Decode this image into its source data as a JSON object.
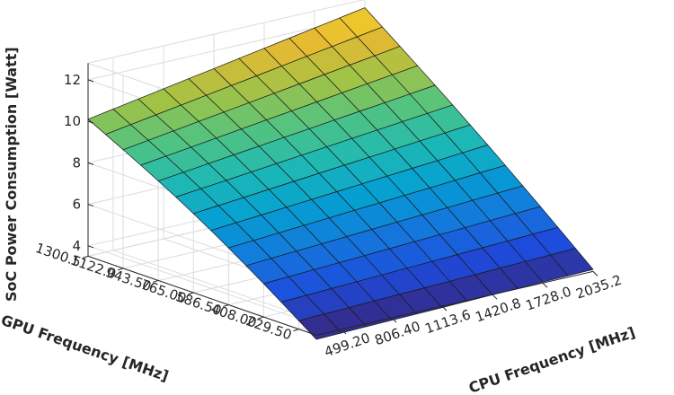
{
  "chart_data": {
    "type": "surface",
    "title": "",
    "xlabel": "CPU Frequency [MHz]",
    "ylabel": "GPU Frequency [MHz]",
    "zlabel": "SoC Power Consumption [Watt]",
    "cpu_freq_ticks": [
      "499.20",
      "806.40",
      "1113.6",
      "1420.8",
      "1728.0",
      "2035.2"
    ],
    "gpu_freq_ticks": [
      "1300.5",
      "1122.0",
      "943.50",
      "765.00",
      "586.50",
      "408.00",
      "229.50"
    ],
    "power_ticks": [
      "4",
      "6",
      "8",
      "10",
      "12"
    ],
    "power_range": [
      3.5,
      12.8
    ],
    "grid": true,
    "colormap": "parula",
    "cpu_freq": [
      345.6,
      499.2,
      652.8,
      806.4,
      960.0,
      1113.6,
      1267.2,
      1420.8,
      1574.4,
      1728.0,
      1881.6,
      2035.2
    ],
    "gpu_freq": [
      140.25,
      229.5,
      318.75,
      408.0,
      497.25,
      586.5,
      675.75,
      765.0,
      854.25,
      943.5,
      1032.75,
      1122.0,
      1211.25,
      1300.5
    ],
    "power_corners": {
      "cpu_min_gpu_min": 3.3,
      "cpu_max_gpu_min": 3.6,
      "cpu_min_gpu_max": 10.1,
      "cpu_max_gpu_max": 12.4
    }
  }
}
